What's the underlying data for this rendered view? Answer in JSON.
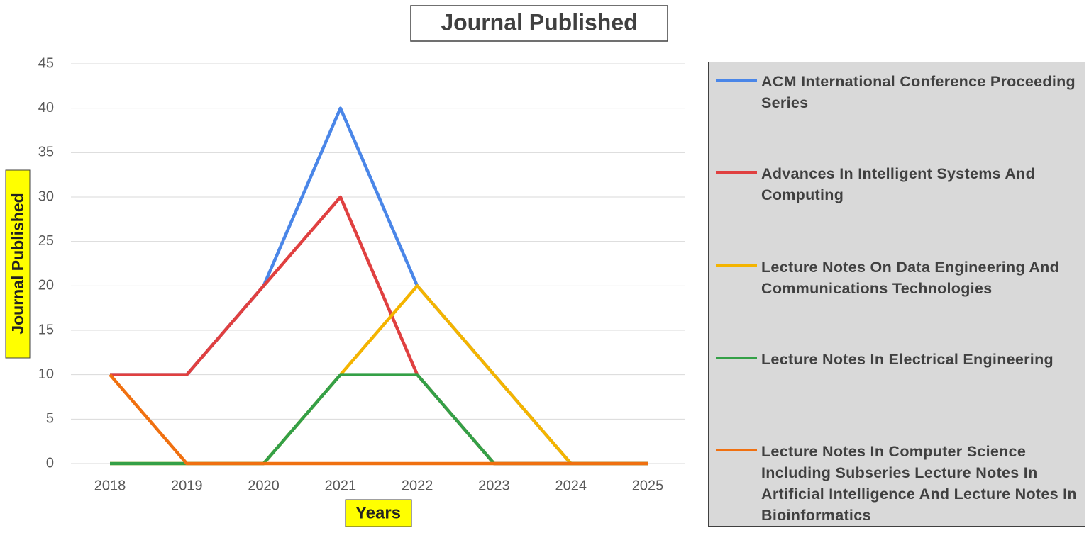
{
  "chart_data": {
    "type": "line",
    "title": "Journal Published",
    "y_label": "Journal Published",
    "x_label": "Years",
    "categories": [
      "2018",
      "2019",
      "2020",
      "2021",
      "2022",
      "2023",
      "2024",
      "2025"
    ],
    "ylim": [
      0,
      45
    ],
    "yticks": [
      0,
      5,
      10,
      15,
      20,
      25,
      30,
      35,
      40,
      45
    ],
    "grid": true,
    "series": [
      {
        "name": "ACM International Conference Proceeding Series",
        "color": "#4a86e8",
        "values": [
          10,
          10,
          20,
          40,
          20,
          10,
          0,
          0
        ]
      },
      {
        "name": "Advances In Intelligent Systems And Computing",
        "color": "#e04040",
        "values": [
          10,
          10,
          20,
          30,
          10,
          0,
          0,
          0
        ]
      },
      {
        "name": "Lecture Notes On Data Engineering And Communications Technologies",
        "color": "#f4b400",
        "values": [
          0,
          0,
          0,
          10,
          20,
          10,
          0,
          0
        ]
      },
      {
        "name": "Lecture Notes In Electrical Engineering",
        "color": "#34a047",
        "values": [
          0,
          0,
          0,
          10,
          10,
          0,
          0,
          0
        ]
      },
      {
        "name": "Lecture Notes In Computer Science Including Subseries Lecture Notes In Artificial Intelligence And Lecture Notes In Bioinformatics",
        "color": "#f07010",
        "values": [
          10,
          0,
          0,
          0,
          0,
          0,
          0,
          0
        ]
      }
    ]
  }
}
